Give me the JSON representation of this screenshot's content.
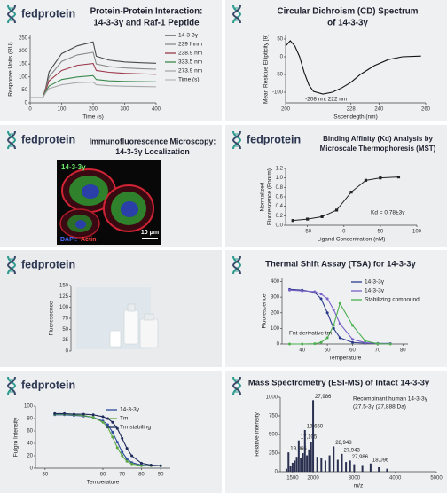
{
  "brand": "fedprotein",
  "chart_data": [
    {
      "type": "line",
      "title": [
        "Protein-Protein Interaction:",
        "14-3-3γ and Raf-1 Peptide"
      ],
      "xlabel": "Time (s)",
      "ylabel": "Response Units (RU)",
      "xlim": [
        0,
        400
      ],
      "xticks": [
        0,
        100,
        200,
        300,
        400
      ],
      "ylim": [
        0,
        260
      ],
      "yticks": [
        0,
        50,
        100,
        150,
        200,
        250
      ],
      "x": [
        0,
        40,
        50,
        60,
        100,
        150,
        200,
        210,
        250,
        300,
        350,
        400
      ],
      "series": [
        {
          "name": "14-3-3γ",
          "color": "#4a4a4a",
          "values": [
            20,
            20,
            60,
            120,
            190,
            220,
            235,
            180,
            165,
            158,
            155,
            153
          ]
        },
        {
          "name": "239 fnnm",
          "color": "#8a8a8a",
          "values": [
            20,
            20,
            55,
            100,
            160,
            185,
            195,
            150,
            140,
            135,
            132,
            130
          ]
        },
        {
          "name": "238.9 nm",
          "color": "#9c3a4a",
          "values": [
            20,
            20,
            50,
            85,
            125,
            145,
            152,
            125,
            118,
            114,
            112,
            110
          ]
        },
        {
          "name": "333.5 nm",
          "color": "#3d8a4e",
          "values": [
            20,
            20,
            45,
            65,
            90,
            100,
            105,
            90,
            85,
            83,
            82,
            81
          ]
        },
        {
          "name": "273.9 nm",
          "color": "#a8a8a8",
          "values": [
            20,
            20,
            40,
            55,
            70,
            78,
            80,
            70,
            66,
            64,
            63,
            62
          ]
        }
      ],
      "legend_extra": "Time (s)"
    },
    {
      "type": "line",
      "title": [
        "Circular Dichroism (CD) Spectrum",
        "of 14-3-3γ"
      ],
      "xlabel": "Sscendegth (nm)",
      "ylabel": "Mean Residue Ellipticity [θ]",
      "xlim": [
        200,
        260
      ],
      "xticks": [
        200,
        228,
        240,
        260
      ],
      "ylim": [
        -130,
        60
      ],
      "yticks": [
        50,
        0,
        -50,
        -100
      ],
      "x": [
        200,
        202,
        204,
        206,
        208,
        210,
        212,
        216,
        220,
        224,
        228,
        232,
        238,
        244,
        250,
        258
      ],
      "series": [
        {
          "color": "#111111",
          "values": [
            30,
            45,
            30,
            0,
            -45,
            -80,
            -98,
            -105,
            -100,
            -88,
            -72,
            -50,
            -25,
            -8,
            0,
            2
          ]
        }
      ],
      "annotation": "-208 nnt 222 nm"
    },
    {
      "type": "image",
      "title": [
        "Immunofluorescence Microscopy:",
        "14-3-3γ Localization"
      ],
      "labels": {
        "channel": "14-3-3γ",
        "stain_a": "DAPI:",
        "stain_b": "Actin",
        "scale_bar": "10 μm"
      }
    },
    {
      "type": "scatter",
      "title": [
        "Binding Affinity (Kd) Analysis by",
        "Microscale Thermophoresis (MST)"
      ],
      "xlabel": "Ligand Concentration (nM)",
      "ylabel": [
        "Normalized",
        "Fluorescence (Fnorm)"
      ],
      "xlim": [
        -80,
        100
      ],
      "xticks": [
        -50,
        0,
        50,
        100
      ],
      "ylim": [
        0,
        1.2
      ],
      "yticks": [
        {
          "value": 0,
          "label": "0.0"
        },
        0.2,
        0.4,
        0.6,
        0.8,
        {
          "value": 1,
          "label": "1.0"
        },
        1.2
      ],
      "x": [
        -70,
        -50,
        -30,
        -10,
        10,
        30,
        50,
        75
      ],
      "series": [
        {
          "color": "#222222",
          "values": [
            0.1,
            0.13,
            0.18,
            0.32,
            0.7,
            0.95,
            1.0,
            1.02
          ]
        }
      ],
      "annotation": "Kd = 0.78±3γ"
    },
    {
      "type": "image",
      "ylabel": "Fluorescence",
      "ylim": [
        0,
        150
      ],
      "yticks": [
        0,
        25,
        50,
        75,
        100,
        125,
        150
      ]
    },
    {
      "type": "line",
      "title": [
        "Thermal Shift Assay (TSA) for 14-3-3γ"
      ],
      "markers": true,
      "xlabel": "Temperature",
      "ylabel": "Fluorescence",
      "xlim": [
        32,
        82
      ],
      "xticks": [
        40,
        50,
        60,
        70,
        80
      ],
      "ylim": [
        0,
        420
      ],
      "yticks": [
        0,
        100,
        200,
        300,
        400
      ],
      "x": [
        35,
        40,
        45,
        47.5,
        50,
        52.5,
        55,
        60,
        65,
        70,
        75
      ],
      "series": [
        {
          "name": "14-3-3γ",
          "color": "#2b3a8c",
          "values": [
            350,
            345,
            330,
            290,
            200,
            100,
            40,
            10,
            5,
            3,
            3
          ]
        },
        {
          "name": "14-3-3γ",
          "color": "#7a62c9",
          "values": [
            345,
            340,
            335,
            320,
            290,
            220,
            130,
            30,
            8,
            4,
            3
          ]
        },
        {
          "name": "Stabilizing compound",
          "color": "#4caf50",
          "values": [
            0,
            0,
            2,
            10,
            40,
            120,
            260,
            120,
            20,
            2,
            0
          ]
        }
      ],
      "annotation": "Fnt derivative tm"
    },
    {
      "type": "line",
      "markers": true,
      "xlabel": "Temperature",
      "ylabel": "Fulgro Intensity",
      "xlim": [
        25,
        95
      ],
      "xticks": [
        30,
        60,
        70,
        80,
        90
      ],
      "ylim": [
        0,
        100
      ],
      "yticks": [
        0,
        20,
        40,
        60,
        80,
        100
      ],
      "x": [
        35,
        40,
        45,
        50,
        55,
        60,
        62.5,
        65,
        67.5,
        70,
        72.5,
        75,
        80,
        85,
        90
      ],
      "series": [
        {
          "name": "14-3-3γ",
          "color": "#2e4a9e",
          "values": [
            86,
            86,
            85,
            84,
            82,
            76,
            70,
            58,
            42,
            26,
            15,
            9,
            5,
            4,
            4
          ]
        },
        {
          "name": "Tm",
          "color": "#5aa845",
          "values": [
            87,
            87,
            86,
            85,
            82,
            74,
            66,
            50,
            33,
            20,
            11,
            7,
            4,
            4,
            4
          ]
        },
        {
          "name": "Tm stabiling",
          "color": "#1f2a5c",
          "values": [
            88,
            88,
            87,
            87,
            86,
            83,
            80,
            74,
            64,
            48,
            32,
            20,
            8,
            5,
            4
          ]
        }
      ]
    },
    {
      "type": "bar",
      "title": [
        "Mass Spectrometry (ESI-MS) of Intact 14-3-3γ"
      ],
      "color": "#2a3050",
      "xlabel": "m/z",
      "ylabel": "Relative Intensity",
      "xlim": [
        1200,
        5000
      ],
      "xticks": [
        1500,
        2000,
        3000,
        4000,
        5000
      ],
      "ylim": [
        0,
        1000
      ],
      "yticks": [
        0,
        250,
        500,
        750,
        1000
      ],
      "x": [
        1350,
        1400,
        1450,
        1500,
        1550,
        1600,
        1650,
        1700,
        1750,
        1800,
        1850,
        1900,
        1950,
        2000,
        2100,
        2200,
        2300,
        2400,
        2500,
        2600,
        2700,
        2800,
        2900,
        3000,
        3200,
        3400,
        3600,
        3800
      ],
      "values": [
        40,
        260,
        80,
        120,
        150,
        200,
        420,
        180,
        250,
        560,
        220,
        300,
        400,
        960,
        200,
        180,
        150,
        220,
        340,
        160,
        240,
        130,
        150,
        100,
        90,
        110,
        60,
        40
      ],
      "peak_labels": [
        null,
        "19,966",
        null,
        null,
        null,
        null,
        "17,105",
        null,
        null,
        "18,650",
        null,
        null,
        null,
        "27,986",
        null,
        null,
        null,
        null,
        "28,948",
        null,
        "27,943",
        null,
        "27,986",
        null,
        null,
        "18,096",
        null,
        null
      ],
      "annotation": [
        "Recombinant human 14-3-3γ",
        "(27.5-3γ (27,888 Da)"
      ]
    }
  ]
}
